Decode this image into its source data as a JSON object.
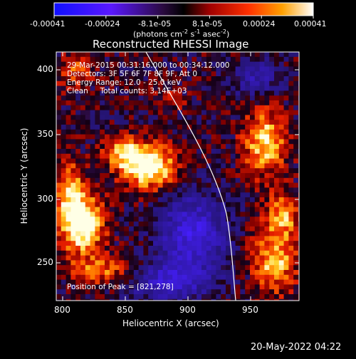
{
  "colorbar": {
    "tick_labels": [
      "-0.00041",
      "-0.00024",
      "-8.1e-05",
      "8.1e-05",
      "0.00024",
      "0.00041"
    ],
    "units_label": "(photons cm",
    "units_exp1": "-2",
    "units_mid": " s",
    "units_exp2": "-1",
    "units_end": " asec",
    "units_exp3": "-2",
    "units_close": ")"
  },
  "title": "Reconstructed RHESSI Image",
  "info": {
    "line1": "29-Mar-2015 00:31:16.000 to 00:34:12.000",
    "line2": "Detectors: 3F 5F 6F 7F 8F 9F, Att 0",
    "line3": "Energy Range: 12.0 - 25.0 keV",
    "line4": "Clean     Total counts: 3.14E+03"
  },
  "peak_label": "Position of Peak = [821,278]",
  "x_axis": {
    "label": "Heliocentric X (arcsec)",
    "ticks": [
      800,
      850,
      900,
      950
    ]
  },
  "y_axis": {
    "label": "Heliocentric Y (arcsec)",
    "ticks": [
      250,
      300,
      350,
      400
    ]
  },
  "footer_date": "20-May-2022 04:22",
  "colors": {
    "background": "#000000",
    "foreground": "#ffffff"
  },
  "chart_data": {
    "type": "heatmap",
    "title": "Reconstructed RHESSI Image",
    "xlabel": "Heliocentric X (arcsec)",
    "ylabel": "Heliocentric Y (arcsec)",
    "xlim": [
      795,
      987
    ],
    "ylim": [
      220,
      410
    ],
    "colorscale_range": [
      -0.00041,
      0.00041
    ],
    "peak": [
      821,
      278
    ],
    "colormap": "blue-purple-red-yellow-white"
  }
}
